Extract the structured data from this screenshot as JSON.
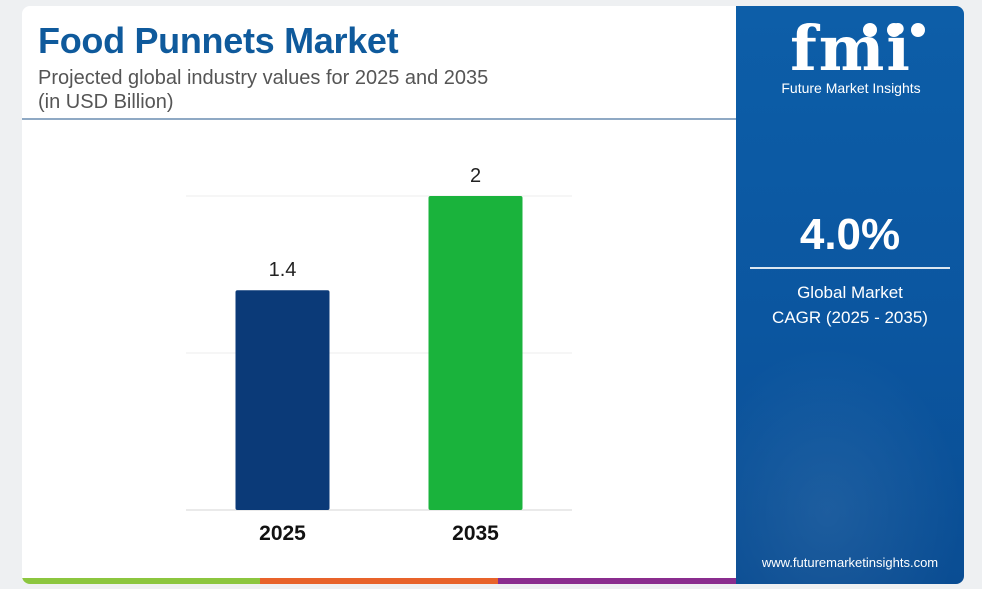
{
  "header": {
    "title": "Food Punnets Market",
    "subtitle_line1": "Projected global industry values for 2025 and 2035",
    "subtitle_line2": "(in USD Billion)"
  },
  "chart_data": {
    "type": "bar",
    "categories": [
      "2025",
      "2035"
    ],
    "values": [
      1.4,
      2
    ],
    "data_labels": [
      "1.4",
      "2"
    ],
    "colors": [
      "#0b3a78",
      "#1ab33c"
    ],
    "ylim": [
      0,
      2
    ],
    "grid": true,
    "title": "Food Punnets Market",
    "xlabel": "",
    "ylabel": ""
  },
  "sidebar": {
    "logo_mark": "fmi",
    "logo_text": "Future Market Insights",
    "cagr_value": "4.0%",
    "cagr_label_line1": "Global Market",
    "cagr_label_line2": "CAGR (2025 - 2035)",
    "website": "www.futuremarketinsights.com"
  },
  "theme": {
    "title_color": "#0f5a9c",
    "sidebar_color": "#0b56a0",
    "bottom_bar_colors": [
      "#8cc63f",
      "#e8632a",
      "#8a2d8e"
    ]
  }
}
